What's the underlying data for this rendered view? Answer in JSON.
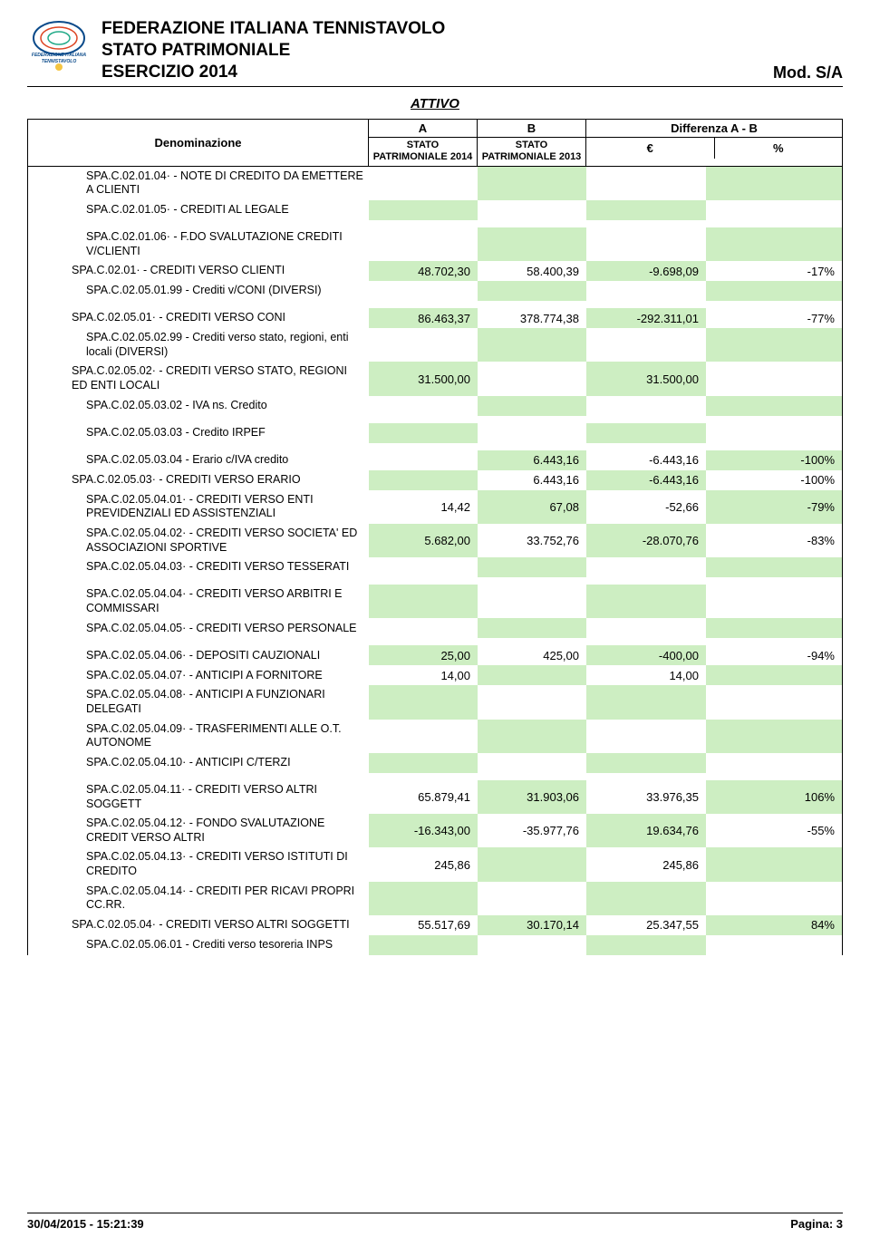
{
  "header": {
    "line1": "FEDERAZIONE ITALIANA TENNISTAVOLO",
    "line2": "STATO PATRIMONIALE",
    "line3": "ESERCIZIO 2014",
    "mod": "Mod. S/A"
  },
  "attivo": "ATTIVO",
  "thead": {
    "denom": "Denominazione",
    "a": "A",
    "b": "B",
    "diff": "Differenza A - B",
    "sub_a": "STATO PATRIMONIALE 2014",
    "sub_b": "STATO PATRIMONIALE 2013",
    "eur": "€",
    "pct": "%"
  },
  "colors": {
    "green": "#cdeec2",
    "white": "#ffffff"
  },
  "rows": [
    {
      "label": "SPA.C.02.01.04· - NOTE DI CREDITO DA EMETTERE A CLIENTI",
      "indent": 4,
      "a": "",
      "b": "",
      "eur": "",
      "pct": "",
      "bgA": "white",
      "bgB": "green",
      "bgE": "white",
      "bgP": "green",
      "spaceAfter": false
    },
    {
      "label": "SPA.C.02.01.05· - CREDITI AL LEGALE",
      "indent": 4,
      "a": "",
      "b": "",
      "eur": "",
      "pct": "",
      "bgA": "green",
      "bgB": "white",
      "bgE": "green",
      "bgP": "white",
      "spaceAfter": true
    },
    {
      "label": "SPA.C.02.01.06· - F.DO SVALUTAZIONE CREDITI V/CLIENTI",
      "indent": 4,
      "a": "",
      "b": "",
      "eur": "",
      "pct": "",
      "bgA": "white",
      "bgB": "green",
      "bgE": "white",
      "bgP": "green",
      "spaceAfter": false
    },
    {
      "label": "SPA.C.02.01· - CREDITI VERSO CLIENTI",
      "indent": 3,
      "a": "48.702,30",
      "b": "58.400,39",
      "eur": "-9.698,09",
      "pct": "-17%",
      "bgA": "green",
      "bgB": "white",
      "bgE": "green",
      "bgP": "white",
      "spaceAfter": false
    },
    {
      "label": "SPA.C.02.05.01.99 - Crediti v/CONI (DIVERSI)",
      "indent": 4,
      "a": "",
      "b": "",
      "eur": "",
      "pct": "",
      "bgA": "white",
      "bgB": "green",
      "bgE": "white",
      "bgP": "green",
      "spaceAfter": true
    },
    {
      "label": "SPA.C.02.05.01· - CREDITI VERSO CONI",
      "indent": 3,
      "a": "86.463,37",
      "b": "378.774,38",
      "eur": "-292.311,01",
      "pct": "-77%",
      "bgA": "green",
      "bgB": "white",
      "bgE": "green",
      "bgP": "white",
      "spaceAfter": false
    },
    {
      "label": "SPA.C.02.05.02.99 - Crediti verso stato, regioni, enti locali (DIVERSI)",
      "indent": 4,
      "a": "",
      "b": "",
      "eur": "",
      "pct": "",
      "bgA": "white",
      "bgB": "green",
      "bgE": "white",
      "bgP": "green",
      "spaceAfter": false
    },
    {
      "label": "SPA.C.02.05.02· - CREDITI VERSO STATO, REGIONI ED ENTI LOCALI",
      "indent": 3,
      "a": "31.500,00",
      "b": "",
      "eur": "31.500,00",
      "pct": "",
      "bgA": "green",
      "bgB": "white",
      "bgE": "green",
      "bgP": "white",
      "spaceAfter": false
    },
    {
      "label": "SPA.C.02.05.03.02 - IVA ns. Credito",
      "indent": 4,
      "a": "",
      "b": "",
      "eur": "",
      "pct": "",
      "bgA": "white",
      "bgB": "green",
      "bgE": "white",
      "bgP": "green",
      "spaceAfter": true
    },
    {
      "label": "SPA.C.02.05.03.03 - Credito IRPEF",
      "indent": 4,
      "a": "",
      "b": "",
      "eur": "",
      "pct": "",
      "bgA": "green",
      "bgB": "white",
      "bgE": "green",
      "bgP": "white",
      "spaceAfter": true
    },
    {
      "label": "SPA.C.02.05.03.04 - Erario c/IVA credito",
      "indent": 4,
      "a": "",
      "b": "6.443,16",
      "eur": "-6.443,16",
      "pct": "-100%",
      "bgA": "white",
      "bgB": "green",
      "bgE": "white",
      "bgP": "green",
      "spaceAfter": false
    },
    {
      "label": "SPA.C.02.05.03· - CREDITI VERSO ERARIO",
      "indent": 3,
      "a": "",
      "b": "6.443,16",
      "eur": "-6.443,16",
      "pct": "-100%",
      "bgA": "green",
      "bgB": "white",
      "bgE": "green",
      "bgP": "white",
      "spaceAfter": false
    },
    {
      "label": "SPA.C.02.05.04.01· - CREDITI VERSO ENTI PREVIDENZIALI ED ASSISTENZIALI",
      "indent": 4,
      "a": "14,42",
      "b": "67,08",
      "eur": "-52,66",
      "pct": "-79%",
      "bgA": "white",
      "bgB": "green",
      "bgE": "white",
      "bgP": "green",
      "spaceAfter": false
    },
    {
      "label": "SPA.C.02.05.04.02· - CREDITI VERSO SOCIETA' ED ASSOCIAZIONI SPORTIVE",
      "indent": 4,
      "a": "5.682,00",
      "b": "33.752,76",
      "eur": "-28.070,76",
      "pct": "-83%",
      "bgA": "green",
      "bgB": "white",
      "bgE": "green",
      "bgP": "white",
      "spaceAfter": false
    },
    {
      "label": "SPA.C.02.05.04.03· - CREDITI VERSO TESSERATI",
      "indent": 4,
      "a": "",
      "b": "",
      "eur": "",
      "pct": "",
      "bgA": "white",
      "bgB": "green",
      "bgE": "white",
      "bgP": "green",
      "spaceAfter": true
    },
    {
      "label": "SPA.C.02.05.04.04· - CREDITI VERSO ARBITRI E COMMISSARI",
      "indent": 4,
      "a": "",
      "b": "",
      "eur": "",
      "pct": "",
      "bgA": "green",
      "bgB": "white",
      "bgE": "green",
      "bgP": "white",
      "spaceAfter": false
    },
    {
      "label": "SPA.C.02.05.04.05· - CREDITI VERSO PERSONALE",
      "indent": 4,
      "a": "",
      "b": "",
      "eur": "",
      "pct": "",
      "bgA": "white",
      "bgB": "green",
      "bgE": "white",
      "bgP": "green",
      "spaceAfter": true
    },
    {
      "label": "SPA.C.02.05.04.06· - DEPOSITI CAUZIONALI",
      "indent": 4,
      "a": "25,00",
      "b": "425,00",
      "eur": "-400,00",
      "pct": "-94%",
      "bgA": "green",
      "bgB": "white",
      "bgE": "green",
      "bgP": "white",
      "spaceAfter": false
    },
    {
      "label": "SPA.C.02.05.04.07· - ANTICIPI A FORNITORE",
      "indent": 4,
      "a": "14,00",
      "b": "",
      "eur": "14,00",
      "pct": "",
      "bgA": "white",
      "bgB": "green",
      "bgE": "white",
      "bgP": "green",
      "spaceAfter": false
    },
    {
      "label": "SPA.C.02.05.04.08· - ANTICIPI A FUNZIONARI DELEGATI",
      "indent": 4,
      "a": "",
      "b": "",
      "eur": "",
      "pct": "",
      "bgA": "green",
      "bgB": "white",
      "bgE": "green",
      "bgP": "white",
      "spaceAfter": false
    },
    {
      "label": "SPA.C.02.05.04.09· - TRASFERIMENTI ALLE O.T. AUTONOME",
      "indent": 4,
      "a": "",
      "b": "",
      "eur": "",
      "pct": "",
      "bgA": "white",
      "bgB": "green",
      "bgE": "white",
      "bgP": "green",
      "spaceAfter": false
    },
    {
      "label": "SPA.C.02.05.04.10· - ANTICIPI C/TERZI",
      "indent": 4,
      "a": "",
      "b": "",
      "eur": "",
      "pct": "",
      "bgA": "green",
      "bgB": "white",
      "bgE": "green",
      "bgP": "white",
      "spaceAfter": true
    },
    {
      "label": "SPA.C.02.05.04.11· - CREDITI VERSO ALTRI SOGGETT",
      "indent": 4,
      "a": "65.879,41",
      "b": "31.903,06",
      "eur": "33.976,35",
      "pct": "106%",
      "bgA": "white",
      "bgB": "green",
      "bgE": "white",
      "bgP": "green",
      "spaceAfter": false
    },
    {
      "label": "SPA.C.02.05.04.12· - FONDO SVALUTAZIONE CREDIT VERSO ALTRI",
      "indent": 4,
      "a": "-16.343,00",
      "b": "-35.977,76",
      "eur": "19.634,76",
      "pct": "-55%",
      "bgA": "green",
      "bgB": "white",
      "bgE": "green",
      "bgP": "white",
      "spaceAfter": false
    },
    {
      "label": "SPA.C.02.05.04.13· - CREDITI VERSO ISTITUTI DI CREDITO",
      "indent": 4,
      "a": "245,86",
      "b": "",
      "eur": "245,86",
      "pct": "",
      "bgA": "white",
      "bgB": "green",
      "bgE": "white",
      "bgP": "green",
      "spaceAfter": false
    },
    {
      "label": "SPA.C.02.05.04.14· - CREDITI PER RICAVI PROPRI CC.RR.",
      "indent": 4,
      "a": "",
      "b": "",
      "eur": "",
      "pct": "",
      "bgA": "green",
      "bgB": "white",
      "bgE": "green",
      "bgP": "white",
      "spaceAfter": false
    },
    {
      "label": "SPA.C.02.05.04· - CREDITI VERSO ALTRI SOGGETTI",
      "indent": 3,
      "a": "55.517,69",
      "b": "30.170,14",
      "eur": "25.347,55",
      "pct": "84%",
      "bgA": "white",
      "bgB": "green",
      "bgE": "white",
      "bgP": "green",
      "spaceAfter": false
    },
    {
      "label": "SPA.C.02.05.06.01 - Crediti verso tesoreria INPS",
      "indent": 4,
      "a": "",
      "b": "",
      "eur": "",
      "pct": "",
      "bgA": "green",
      "bgB": "white",
      "bgE": "green",
      "bgP": "white",
      "spaceAfter": false
    }
  ],
  "footer": {
    "left": "30/04/2015 - 15:21:39",
    "right": "Pagina: 3"
  }
}
